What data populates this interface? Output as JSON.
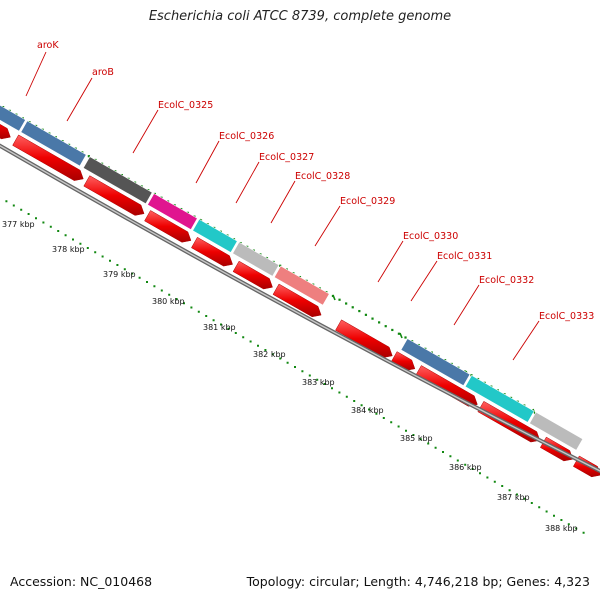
{
  "title": "Escherichia coli ATCC 8739, complete genome",
  "footer": {
    "accession": "Accession: NC_010468",
    "summary": "Topology: circular; Length: 4,746,218 bp; Genes: 4,323"
  },
  "gene_labels": [
    {
      "text": "aroK"
    },
    {
      "text": "aroB"
    },
    {
      "text": "EcolC_0325"
    },
    {
      "text": "EcolC_0326"
    },
    {
      "text": "EcolC_0327"
    },
    {
      "text": "EcolC_0328"
    },
    {
      "text": "EcolC_0329"
    },
    {
      "text": "EcolC_0330"
    },
    {
      "text": "EcolC_0331"
    },
    {
      "text": "EcolC_0332"
    },
    {
      "text": "EcolC_0333"
    }
  ],
  "ticks": [
    "377 kbp",
    "378 kbp",
    "379 kbp",
    "380 kbp",
    "381 kbp",
    "382 kbp",
    "383 kbp",
    "384 kbp",
    "385 kbp",
    "386 kbp",
    "387 kbp",
    "388 kbp"
  ],
  "colors": {
    "label": "#cc0000",
    "leader": "#cc0000",
    "gc_dots": "#118811",
    "backbone": "#888888",
    "cds": "#ee0000"
  },
  "feature_colors": {
    "blue": "#4a78a8",
    "dark_gray": "#555555",
    "magenta": "#e0158f",
    "cyan": "#22c8c8",
    "light_gray": "#bbbbbb",
    "salmon": "#ee7f7f"
  }
}
